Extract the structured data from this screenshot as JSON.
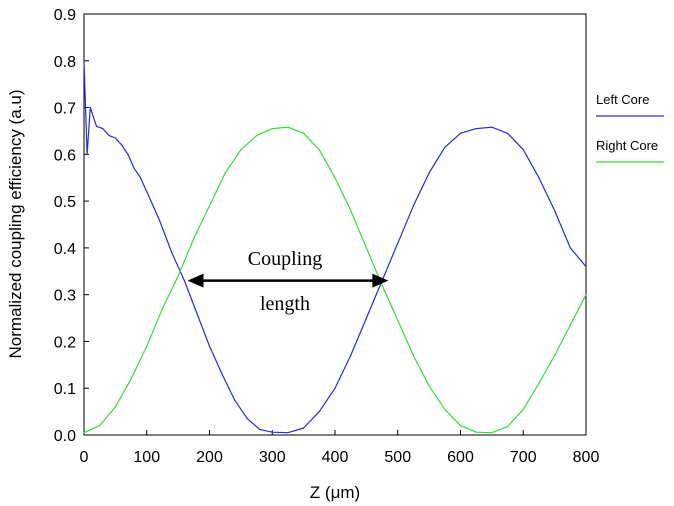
{
  "colors": {
    "left_core": "#2a2ad6",
    "right_core": "#33dd33",
    "axis": "#000000"
  },
  "chart_data": {
    "type": "line",
    "title": "",
    "xlabel": "Z (μm)",
    "ylabel": "Normalized coupling efficiency (a.u)",
    "xlim": [
      0,
      800
    ],
    "ylim": [
      0,
      0.9
    ],
    "x_ticks": [
      "0",
      "100",
      "200",
      "300",
      "400",
      "500",
      "600",
      "700",
      "800"
    ],
    "y_ticks": [
      "0.0",
      "0.1",
      "0.2",
      "0.3",
      "0.4",
      "0.5",
      "0.6",
      "0.7",
      "0.8",
      "0.9"
    ],
    "grid": false,
    "legend_position": "right",
    "series": [
      {
        "name": "Left Core",
        "color": "#2a2ad6",
        "x": [
          0,
          5,
          10,
          20,
          30,
          40,
          50,
          60,
          70,
          80,
          90,
          100,
          120,
          140,
          160,
          180,
          200,
          220,
          240,
          260,
          280,
          300,
          325,
          350,
          375,
          400,
          425,
          450,
          475,
          500,
          525,
          550,
          575,
          600,
          625,
          650,
          675,
          700,
          725,
          750,
          775,
          800
        ],
        "y": [
          0.8,
          0.6,
          0.7,
          0.66,
          0.655,
          0.64,
          0.635,
          0.62,
          0.6,
          0.57,
          0.55,
          0.52,
          0.46,
          0.39,
          0.33,
          0.26,
          0.19,
          0.13,
          0.075,
          0.035,
          0.012,
          0.006,
          0.005,
          0.015,
          0.05,
          0.1,
          0.17,
          0.25,
          0.33,
          0.41,
          0.49,
          0.56,
          0.615,
          0.645,
          0.655,
          0.658,
          0.645,
          0.61,
          0.55,
          0.48,
          0.4,
          0.36
        ]
      },
      {
        "name": "Right Core",
        "color": "#33dd33",
        "x": [
          0,
          25,
          50,
          75,
          100,
          125,
          150,
          175,
          200,
          225,
          250,
          275,
          300,
          325,
          350,
          375,
          400,
          425,
          450,
          475,
          500,
          525,
          550,
          575,
          600,
          625,
          650,
          675,
          700,
          725,
          750,
          775,
          800
        ],
        "y": [
          0.005,
          0.02,
          0.06,
          0.12,
          0.19,
          0.27,
          0.34,
          0.42,
          0.49,
          0.56,
          0.61,
          0.64,
          0.655,
          0.658,
          0.645,
          0.61,
          0.55,
          0.48,
          0.4,
          0.32,
          0.245,
          0.17,
          0.105,
          0.055,
          0.02,
          0.006,
          0.005,
          0.018,
          0.055,
          0.11,
          0.17,
          0.235,
          0.3
        ]
      }
    ],
    "annotations": [
      {
        "text_line1": "Coupling",
        "text_line2": "length",
        "type": "double-arrow",
        "x_start": 165,
        "x_end": 485,
        "y": 0.33
      }
    ]
  }
}
